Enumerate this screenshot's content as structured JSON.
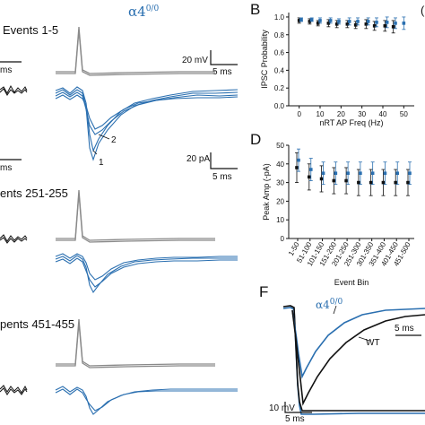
{
  "figure": {
    "alpha_label": "α4",
    "alpha_sup": "0/0",
    "panel_b": "B",
    "panel_d": "D",
    "panel_f": "F",
    "events_labels": [
      "Events 1-5",
      "ents 251-255",
      "pents 451-455"
    ],
    "scalebar_20mv": "20 mV",
    "scalebar_5ms_top": "5 ms",
    "scalebar_ms_left": "ms",
    "scalebar_20pa": "20 pA",
    "scalebar_5ms_mid": "5 ms",
    "scalebar_f_5ms": "5 ms",
    "scalebar_f_10mv": "10 mV",
    "scalebar_f_5ms_bottom": "5 ms",
    "trace_label_1": "1",
    "trace_label_2": "2",
    "wt_label": "WT",
    "f_alpha_label": "α4",
    "f_alpha_sup": "0/0",
    "cut_letter": "(",
    "colors": {
      "blue": "#2a6fb0",
      "black": "#111111",
      "gray": "#8a8a8a"
    }
  },
  "chart_data": [
    {
      "type": "scatter",
      "panel": "B",
      "title": "",
      "xlabel": "nRT AP Freq (Hz)",
      "ylabel": "IPSC Probability",
      "xlim": [
        -5,
        55
      ],
      "ylim": [
        0,
        1.05
      ],
      "x_ticks": [
        0,
        10,
        20,
        30,
        40,
        50
      ],
      "y_ticks": [
        0,
        0.2,
        0.4,
        0.6,
        0.8,
        1.0
      ],
      "y_tick_labels": [
        "0.0",
        "0.2",
        "0.4",
        "0.6",
        "0.8",
        "1.0"
      ],
      "series": [
        {
          "color": "#111111",
          "x": [
            0,
            5,
            9,
            14,
            18,
            23,
            27,
            32,
            36,
            41,
            45
          ],
          "y": [
            0.96,
            0.95,
            0.93,
            0.93,
            0.92,
            0.92,
            0.91,
            0.92,
            0.9,
            0.9,
            0.89
          ],
          "err": [
            0.03,
            0.03,
            0.03,
            0.04,
            0.04,
            0.04,
            0.04,
            0.05,
            0.05,
            0.06,
            0.07
          ]
        },
        {
          "color": "#2a6fb0",
          "x": [
            1,
            6,
            10,
            15,
            19,
            24,
            28,
            33,
            37,
            42,
            46,
            50
          ],
          "y": [
            0.97,
            0.97,
            0.96,
            0.96,
            0.95,
            0.95,
            0.95,
            0.95,
            0.94,
            0.94,
            0.93,
            0.93
          ],
          "err": [
            0.02,
            0.02,
            0.03,
            0.03,
            0.03,
            0.04,
            0.04,
            0.04,
            0.05,
            0.06,
            0.06,
            0.07
          ]
        }
      ]
    },
    {
      "type": "scatter",
      "panel": "D",
      "title": "",
      "xlabel": "Event Bin",
      "ylabel": "Peak Amp (-pA)",
      "ylim": [
        0,
        50
      ],
      "y_ticks": [
        0,
        10,
        20,
        30,
        40,
        50
      ],
      "categories": [
        "1-50",
        "51-100",
        "101-150",
        "151-200",
        "201-250",
        "251-300",
        "301-350",
        "351-400",
        "401-450",
        "451-500"
      ],
      "series": [
        {
          "color": "#111111",
          "values": [
            38,
            33,
            32,
            31,
            31,
            30,
            30,
            30,
            30,
            30
          ],
          "err": [
            8,
            7,
            7,
            7,
            7,
            7,
            7,
            7,
            7,
            7
          ]
        },
        {
          "color": "#2a6fb0",
          "values": [
            42,
            37,
            35,
            35,
            35,
            35,
            35,
            35,
            35,
            35
          ],
          "err": [
            6,
            6,
            6,
            6,
            6,
            6,
            6,
            6,
            6,
            6
          ]
        }
      ]
    }
  ]
}
